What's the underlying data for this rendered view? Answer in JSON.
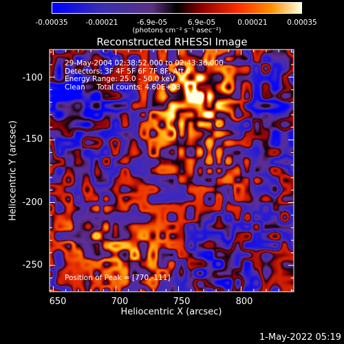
{
  "colorbar": {
    "ticks": [
      "-0.00035",
      "-0.00021",
      "-6.9e-05",
      "6.9e-05",
      "0.00021",
      "0.00035"
    ],
    "tick_values": [
      -0.00035,
      -0.00021,
      -6.9e-05,
      6.9e-05,
      0.00021,
      0.00035
    ],
    "unit": "(photons cm⁻² s⁻¹ asec⁻²)"
  },
  "info_lines": [
    "29-May-2004 02:38:52.000 to 02:43:36.000",
    "Detectors: 3F 4F 5F 6F 7F 8F, Att 0",
    "Energy Range: 25.0 - 50.0 keV",
    "Clean     Total counts: 4.60E+03"
  ],
  "peak_label": "Position of Peak = [770,-111]",
  "date_stamp": "1-May-2022 05:19",
  "chart_data": {
    "type": "heatmap",
    "title": "Reconstructed RHESSI Image",
    "xlabel": "Heliocentric X (arcsec)",
    "ylabel": "Heliocentric Y (arcsec)",
    "xlim": [
      647,
      842
    ],
    "ylim": [
      -271,
      -78
    ],
    "xticks": [
      650,
      700,
      750,
      800
    ],
    "yticks": [
      -100,
      -150,
      -200,
      -250
    ],
    "xtick_labels": [
      "650",
      "700",
      "750",
      "800"
    ],
    "ytick_labels": [
      "-100",
      "-150",
      "-200",
      "-250"
    ],
    "clim": [
      -0.00035,
      0.00035
    ],
    "peak": [
      770,
      -111
    ],
    "colormap": "blue-purple-red-orange-yellow-white",
    "colors": {
      "low": "#0000ff",
      "mid_low": "#5a2e9c",
      "zero": "#000000",
      "mid_high": "#d02000",
      "high": "#ffffff"
    }
  }
}
